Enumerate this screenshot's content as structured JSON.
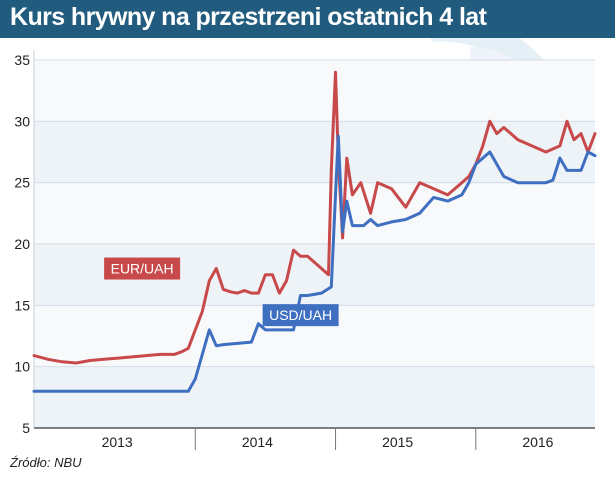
{
  "header": {
    "title": "Kurs hrywny na przestrzeni ostatnich 4 lat",
    "background": "#215c7e"
  },
  "source": "Źródło: NBU",
  "chart_data": {
    "type": "line",
    "title": "Kurs hrywny na przestrzeni ostatnich 4 lat",
    "xlabel": "",
    "ylabel": "",
    "ylim": [
      5,
      35
    ],
    "yticks": [
      5,
      10,
      15,
      20,
      25,
      30,
      35
    ],
    "xlim": [
      2012.85,
      2016.85
    ],
    "x_tick_labels": [
      {
        "label": "2013",
        "x": 2013.5
      },
      {
        "label": "2014",
        "x": 2014.5
      },
      {
        "label": "2015",
        "x": 2015.5
      },
      {
        "label": "2016",
        "x": 2016.5
      }
    ],
    "year_boundaries": [
      2014.0,
      2015.0,
      2016.0
    ],
    "grid": true,
    "legend": "inline labels on the lines",
    "series": [
      {
        "name": "EUR/UAH",
        "color": "#c8494a",
        "x": [
          2012.85,
          2012.95,
          2013.05,
          2013.15,
          2013.25,
          2013.35,
          2013.45,
          2013.55,
          2013.65,
          2013.75,
          2013.85,
          2013.9,
          2013.95,
          2014.0,
          2014.05,
          2014.1,
          2014.15,
          2014.2,
          2014.25,
          2014.3,
          2014.35,
          2014.4,
          2014.45,
          2014.5,
          2014.55,
          2014.6,
          2014.65,
          2014.7,
          2014.75,
          2014.8,
          2014.85,
          2014.9,
          2014.95,
          2014.97,
          2015.0,
          2015.02,
          2015.05,
          2015.08,
          2015.12,
          2015.18,
          2015.25,
          2015.3,
          2015.4,
          2015.5,
          2015.6,
          2015.7,
          2015.8,
          2015.9,
          2015.95,
          2016.0,
          2016.05,
          2016.1,
          2016.15,
          2016.2,
          2016.3,
          2016.4,
          2016.5,
          2016.6,
          2016.65,
          2016.7,
          2016.75,
          2016.8,
          2016.85
        ],
        "values": [
          10.9,
          10.6,
          10.4,
          10.3,
          10.5,
          10.6,
          10.7,
          10.8,
          10.9,
          11.0,
          11.0,
          11.2,
          11.5,
          13.0,
          14.5,
          17.0,
          18.0,
          16.3,
          16.1,
          16.0,
          16.2,
          16.0,
          16.0,
          17.5,
          17.5,
          16.0,
          17.0,
          19.5,
          19.0,
          19.0,
          18.5,
          18.0,
          17.5,
          26.0,
          34.0,
          27.0,
          20.5,
          27.0,
          24.0,
          25.0,
          22.5,
          25.0,
          24.5,
          23.0,
          25.0,
          24.5,
          24.0,
          25.0,
          25.5,
          26.5,
          28.0,
          30.0,
          29.0,
          29.5,
          28.5,
          28.0,
          27.5,
          28.0,
          30.0,
          28.5,
          29.0,
          27.5,
          29.0
        ]
      },
      {
        "name": "USD/UAH",
        "color": "#3f6fc0",
        "x": [
          2012.85,
          2013.0,
          2013.2,
          2013.4,
          2013.6,
          2013.8,
          2013.95,
          2014.0,
          2014.05,
          2014.1,
          2014.15,
          2014.2,
          2014.3,
          2014.4,
          2014.45,
          2014.5,
          2014.55,
          2014.6,
          2014.7,
          2014.75,
          2014.8,
          2014.9,
          2014.97,
          2015.0,
          2015.02,
          2015.05,
          2015.08,
          2015.12,
          2015.2,
          2015.25,
          2015.3,
          2015.4,
          2015.5,
          2015.6,
          2015.7,
          2015.8,
          2015.9,
          2015.95,
          2016.0,
          2016.05,
          2016.1,
          2016.2,
          2016.3,
          2016.4,
          2016.5,
          2016.55,
          2016.6,
          2016.65,
          2016.7,
          2016.75,
          2016.8,
          2016.85
        ],
        "values": [
          8.0,
          8.0,
          8.0,
          8.0,
          8.0,
          8.0,
          8.0,
          9.0,
          11.0,
          13.0,
          11.7,
          11.8,
          11.9,
          12.0,
          13.5,
          13.0,
          13.0,
          13.0,
          13.0,
          15.8,
          15.8,
          16.0,
          16.5,
          24.0,
          28.8,
          21.0,
          23.5,
          21.5,
          21.5,
          22.0,
          21.5,
          21.8,
          22.0,
          22.5,
          23.8,
          23.5,
          24.0,
          25.0,
          26.5,
          27.0,
          27.5,
          25.5,
          25.0,
          25.0,
          25.0,
          25.2,
          27.0,
          26.0,
          26.0,
          26.0,
          27.5,
          27.2
        ]
      }
    ]
  }
}
